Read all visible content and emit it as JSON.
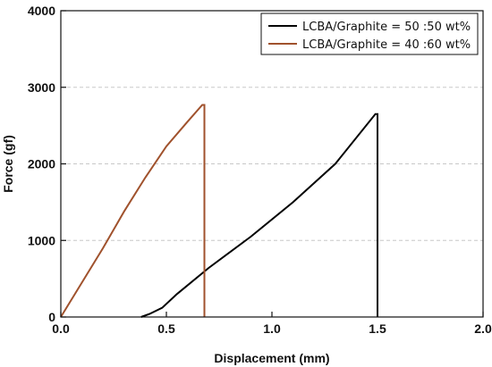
{
  "chart_data": {
    "type": "line",
    "xlabel": "Displacement (mm)",
    "ylabel": "Force (gf)",
    "xlim": [
      0.0,
      2.0
    ],
    "ylim": [
      0,
      4000
    ],
    "x_ticks": [
      "0.0",
      "0.5",
      "1.0",
      "1.5",
      "2.0"
    ],
    "y_ticks": [
      "0",
      "1000",
      "2000",
      "3000",
      "4000"
    ],
    "grid": "horizontal dashed",
    "legend_position": "top-right",
    "series": [
      {
        "name": "LCBA/Graphite = 50 :50 wt%",
        "color": "#000000",
        "points": [
          [
            0.38,
            0
          ],
          [
            0.42,
            40
          ],
          [
            0.48,
            120
          ],
          [
            0.55,
            300
          ],
          [
            0.7,
            640
          ],
          [
            0.9,
            1050
          ],
          [
            1.1,
            1500
          ],
          [
            1.3,
            2000
          ],
          [
            1.49,
            2650
          ],
          [
            1.5,
            2650
          ],
          [
            1.5,
            0
          ]
        ]
      },
      {
        "name": "LCBA/Graphite = 40 :60 wt%",
        "color": "#a0522d",
        "points": [
          [
            0.0,
            0
          ],
          [
            0.1,
            450
          ],
          [
            0.2,
            900
          ],
          [
            0.3,
            1380
          ],
          [
            0.4,
            1820
          ],
          [
            0.5,
            2230
          ],
          [
            0.6,
            2550
          ],
          [
            0.67,
            2770
          ],
          [
            0.68,
            2770
          ],
          [
            0.68,
            0
          ]
        ]
      }
    ]
  }
}
